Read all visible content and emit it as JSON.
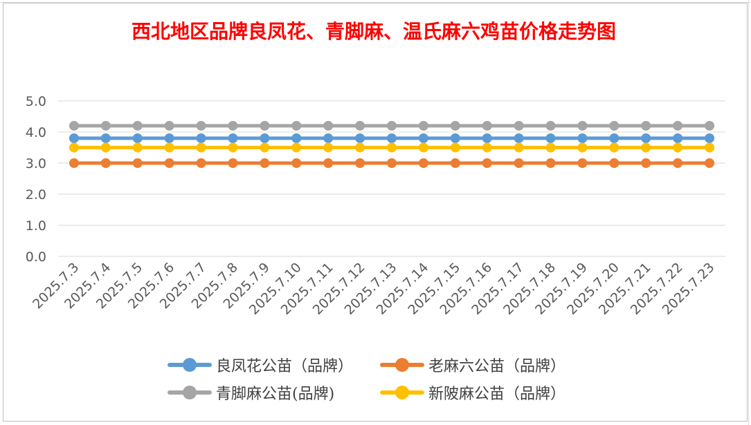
{
  "chart_data": {
    "type": "line",
    "title": "西北地区品牌良凤花、青脚麻、温氏麻六鸡苗价格走势图",
    "x": [
      "2025.7.3",
      "2025.7.4",
      "2025.7.5",
      "2025.7.6",
      "2025.7.7",
      "2025.7.8",
      "2025.7.9",
      "2025.7.10",
      "2025.7.11",
      "2025.7.12",
      "2025.7.13",
      "2025.7.14",
      "2025.7.15",
      "2025.7.16",
      "2025.7.17",
      "2025.7.18",
      "2025.7.19",
      "2025.7.20",
      "2025.7.21",
      "2025.7.22",
      "2025.7.23"
    ],
    "ylim": [
      0,
      5
    ],
    "yticks": [
      "0.0",
      "1.0",
      "2.0",
      "3.0",
      "4.0",
      "5.0"
    ],
    "grid": true,
    "legend_position": "bottom",
    "series": [
      {
        "name": "良凤花公苗（品牌）",
        "color": "#5b9bd5",
        "values": [
          3.8,
          3.8,
          3.8,
          3.8,
          3.8,
          3.8,
          3.8,
          3.8,
          3.8,
          3.8,
          3.8,
          3.8,
          3.8,
          3.8,
          3.8,
          3.8,
          3.8,
          3.8,
          3.8,
          3.8,
          3.8
        ]
      },
      {
        "name": "老麻六公苗（品牌）",
        "color": "#ed7d31",
        "values": [
          3.0,
          3.0,
          3.0,
          3.0,
          3.0,
          3.0,
          3.0,
          3.0,
          3.0,
          3.0,
          3.0,
          3.0,
          3.0,
          3.0,
          3.0,
          3.0,
          3.0,
          3.0,
          3.0,
          3.0,
          3.0
        ]
      },
      {
        "name": "青脚麻公苗(品牌)",
        "color": "#a5a5a5",
        "values": [
          4.2,
          4.2,
          4.2,
          4.2,
          4.2,
          4.2,
          4.2,
          4.2,
          4.2,
          4.2,
          4.2,
          4.2,
          4.2,
          4.2,
          4.2,
          4.2,
          4.2,
          4.2,
          4.2,
          4.2,
          4.2
        ]
      },
      {
        "name": "新陂麻公苗（品牌）",
        "color": "#ffc000",
        "values": [
          3.5,
          3.5,
          3.5,
          3.5,
          3.5,
          3.5,
          3.5,
          3.5,
          3.5,
          3.5,
          3.5,
          3.5,
          3.5,
          3.5,
          3.5,
          3.5,
          3.5,
          3.5,
          3.5,
          3.5,
          3.5
        ]
      }
    ]
  }
}
